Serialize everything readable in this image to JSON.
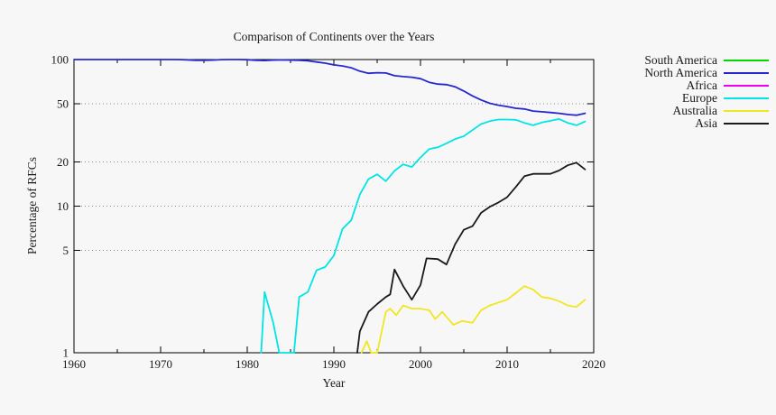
{
  "background": "#f7f7f7",
  "chart_data": {
    "type": "line",
    "title": "Comparison of Continents over the Years",
    "xlabel": "Year",
    "ylabel": "Percentage of RFCs",
    "xlim": [
      1960,
      2020
    ],
    "ylim": [
      1,
      100
    ],
    "y_scale": "log",
    "x_ticks": [
      1960,
      1970,
      1980,
      1990,
      2000,
      2010,
      2020
    ],
    "x_minor_ticks": [
      1965,
      1975,
      1985,
      1995,
      2005,
      2015
    ],
    "y_ticks": [
      100,
      50,
      20,
      10,
      5,
      1
    ],
    "grid": "horizontal-dotted",
    "legend_position": "outside-right",
    "series": [
      {
        "name": "South America",
        "color": "#00d800",
        "points": []
      },
      {
        "name": "North America",
        "color": "#2727cf",
        "points": [
          [
            1960,
            100
          ],
          [
            1961,
            100
          ],
          [
            1962,
            100
          ],
          [
            1963,
            100
          ],
          [
            1964,
            100
          ],
          [
            1965,
            100
          ],
          [
            1966,
            100
          ],
          [
            1967,
            100
          ],
          [
            1968,
            100
          ],
          [
            1969,
            100
          ],
          [
            1970,
            100
          ],
          [
            1971,
            100
          ],
          [
            1972,
            100
          ],
          [
            1973,
            99.6
          ],
          [
            1974,
            98.9
          ],
          [
            1975,
            98.8
          ],
          [
            1976,
            99.2
          ],
          [
            1977,
            99.8
          ],
          [
            1978,
            100
          ],
          [
            1979,
            100
          ],
          [
            1980,
            99.7
          ],
          [
            1981,
            98.9
          ],
          [
            1982,
            98.5
          ],
          [
            1983,
            99.2
          ],
          [
            1984,
            99.5
          ],
          [
            1985,
            99.2
          ],
          [
            1986,
            98.8
          ],
          [
            1987,
            98
          ],
          [
            1988,
            96.3
          ],
          [
            1989,
            94.5
          ],
          [
            1990,
            92
          ],
          [
            1991,
            90.4
          ],
          [
            1992,
            87.9
          ],
          [
            1993,
            83.3
          ],
          [
            1994,
            80.6
          ],
          [
            1995,
            81.3
          ],
          [
            1996,
            81
          ],
          [
            1997,
            77.6
          ],
          [
            1998,
            76.5
          ],
          [
            1999,
            75.8
          ],
          [
            2000,
            74
          ],
          [
            2001,
            70
          ],
          [
            2002,
            68
          ],
          [
            2003,
            67.4
          ],
          [
            2004,
            65.2
          ],
          [
            2005,
            61
          ],
          [
            2006,
            56.5
          ],
          [
            2007,
            53
          ],
          [
            2008,
            50.3
          ],
          [
            2009,
            48.8
          ],
          [
            2010,
            47.8
          ],
          [
            2011,
            46.5
          ],
          [
            2012,
            46
          ],
          [
            2013,
            44.5
          ],
          [
            2014,
            44
          ],
          [
            2015,
            43.5
          ],
          [
            2016,
            43
          ],
          [
            2017,
            42.2
          ],
          [
            2018,
            41.7
          ],
          [
            2019,
            43
          ]
        ]
      },
      {
        "name": "Africa",
        "color": "#f000f0",
        "points": []
      },
      {
        "name": "Europe",
        "color": "#00e5e5",
        "points": [
          [
            1981.6,
            1
          ],
          [
            1982,
            2.6
          ],
          [
            1983,
            1.6
          ],
          [
            1983.7,
            1
          ],
          [
            1985.4,
            1
          ],
          [
            1986,
            2.4
          ],
          [
            1987,
            2.6
          ],
          [
            1988,
            3.65
          ],
          [
            1989,
            3.85
          ],
          [
            1990,
            4.6
          ],
          [
            1991,
            7
          ],
          [
            1992,
            8
          ],
          [
            1993,
            12
          ],
          [
            1994,
            15.3
          ],
          [
            1995,
            16.5
          ],
          [
            1996,
            14.8
          ],
          [
            1997,
            17.4
          ],
          [
            1998,
            19.3
          ],
          [
            1999,
            18.5
          ],
          [
            2000,
            21.5
          ],
          [
            2001,
            24.5
          ],
          [
            2002,
            25.2
          ],
          [
            2003,
            26.8
          ],
          [
            2004,
            28.7
          ],
          [
            2005,
            30
          ],
          [
            2006,
            33
          ],
          [
            2007,
            36.3
          ],
          [
            2008,
            38
          ],
          [
            2009,
            39
          ],
          [
            2010,
            39
          ],
          [
            2011,
            38.8
          ],
          [
            2012,
            37
          ],
          [
            2013,
            35.6
          ],
          [
            2014,
            37.2
          ],
          [
            2015,
            38.2
          ],
          [
            2016,
            39.3
          ],
          [
            2017,
            37
          ],
          [
            2018,
            35.6
          ],
          [
            2019,
            37.8
          ]
        ]
      },
      {
        "name": "Australia",
        "color": "#f0e622",
        "points": [
          [
            1993.2,
            1
          ],
          [
            1993.8,
            1.2
          ],
          [
            1994.3,
            1
          ],
          [
            1995,
            1
          ],
          [
            1996,
            1.9
          ],
          [
            1996.5,
            2
          ],
          [
            1997.2,
            1.8
          ],
          [
            1998,
            2.1
          ],
          [
            1999,
            2
          ],
          [
            2000,
            2
          ],
          [
            2001,
            1.95
          ],
          [
            2001.7,
            1.7
          ],
          [
            2002.5,
            1.9
          ],
          [
            2003.8,
            1.55
          ],
          [
            2004.8,
            1.65
          ],
          [
            2006,
            1.6
          ],
          [
            2007,
            1.95
          ],
          [
            2008,
            2.1
          ],
          [
            2009,
            2.2
          ],
          [
            2010,
            2.3
          ],
          [
            2011,
            2.55
          ],
          [
            2012,
            2.85
          ],
          [
            2013,
            2.7
          ],
          [
            2014,
            2.4
          ],
          [
            2015,
            2.35
          ],
          [
            2016,
            2.25
          ],
          [
            2017,
            2.1
          ],
          [
            2018,
            2.05
          ],
          [
            2019,
            2.3
          ]
        ]
      },
      {
        "name": "Asia",
        "color": "#1a1a1a",
        "points": [
          [
            1992.7,
            1
          ],
          [
            1993,
            1.4
          ],
          [
            1994,
            1.9
          ],
          [
            1995,
            2.15
          ],
          [
            1996,
            2.4
          ],
          [
            1996.5,
            2.5
          ],
          [
            1997,
            3.7
          ],
          [
            1998,
            2.85
          ],
          [
            1999,
            2.3
          ],
          [
            2000,
            2.9
          ],
          [
            2000.7,
            4.4
          ],
          [
            2002,
            4.35
          ],
          [
            2003,
            4
          ],
          [
            2004,
            5.5
          ],
          [
            2005,
            6.9
          ],
          [
            2006,
            7.3
          ],
          [
            2007,
            9
          ],
          [
            2008,
            9.9
          ],
          [
            2009,
            10.6
          ],
          [
            2010,
            11.5
          ],
          [
            2011,
            13.5
          ],
          [
            2012,
            16
          ],
          [
            2013,
            16.6
          ],
          [
            2014,
            16.6
          ],
          [
            2015,
            16.6
          ],
          [
            2016,
            17.5
          ],
          [
            2017,
            19
          ],
          [
            2018,
            19.8
          ],
          [
            2019,
            17.8
          ]
        ]
      }
    ]
  }
}
